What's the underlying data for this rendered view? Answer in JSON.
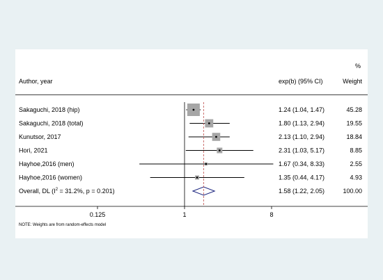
{
  "chart_data": {
    "type": "forest",
    "header": {
      "author_col": "Author, year",
      "ci_col": "exp(b) (95% CI)",
      "weight_col_top": "%",
      "weight_col": "Weight"
    },
    "studies": [
      {
        "label": "Sakaguchi, 2018 (hip)",
        "est": 1.24,
        "lo": 1.04,
        "hi": 1.47,
        "weight": 45.28,
        "ci_text": "1.24 (1.04, 1.47)",
        "weight_text": "45.28"
      },
      {
        "label": "Sakaguchi, 2018 (total)",
        "est": 1.8,
        "lo": 1.13,
        "hi": 2.94,
        "weight": 19.55,
        "ci_text": "1.80 (1.13, 2.94)",
        "weight_text": "19.55"
      },
      {
        "label": "Kunutsor, 2017",
        "est": 2.13,
        "lo": 1.1,
        "hi": 2.94,
        "weight": 18.84,
        "ci_text": "2.13 (1.10, 2.94)",
        "weight_text": "18.84"
      },
      {
        "label": "Hori, 2021",
        "est": 2.31,
        "lo": 1.03,
        "hi": 5.17,
        "weight": 8.85,
        "ci_text": "2.31 (1.03, 5.17)",
        "weight_text": "8.85"
      },
      {
        "label": "Hayhoe,2016 (men)",
        "est": 1.67,
        "lo": 0.34,
        "hi": 8.33,
        "weight": 2.55,
        "ci_text": "1.67 (0.34, 8.33)",
        "weight_text": "2.55"
      },
      {
        "label": "Hayhoe,2016 (women)",
        "est": 1.35,
        "lo": 0.44,
        "hi": 4.17,
        "weight": 4.93,
        "ci_text": "1.35 (0.44, 4.17)",
        "weight_text": "4.93"
      }
    ],
    "overall": {
      "label_prefix": "Overall, DL (I",
      "label_sup": "2",
      "label_suffix": " = 31.2%, p = 0.201)",
      "est": 1.58,
      "lo": 1.22,
      "hi": 2.05,
      "ci_text": "1.58 (1.22, 2.05)",
      "weight_text": "100.00"
    },
    "x_scale": "log",
    "xlim": [
      0.125,
      8
    ],
    "xticks": [
      0.125,
      1,
      8
    ],
    "xtick_labels": [
      "0.125",
      "1",
      "8"
    ],
    "note": "NOTE: Weights are from random-effects model",
    "colors": {
      "box": "#a6a6a6",
      "diamond": "#1a237e",
      "ref_line": "#c0504d",
      "ci_line": "#000000"
    }
  }
}
